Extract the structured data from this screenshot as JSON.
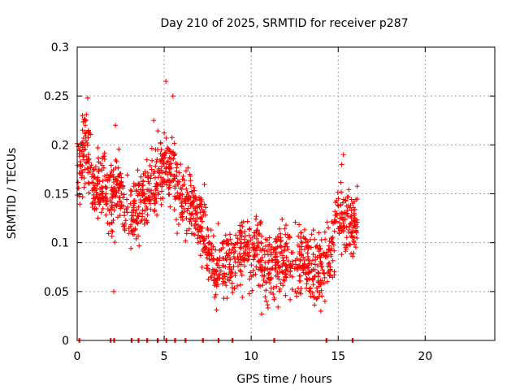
{
  "chart_data": {
    "type": "scatter",
    "title": "Day 210 of 2025, SRMTID for receiver p287",
    "xlabel": "GPS time / hours",
    "ylabel": "SRMTID / TECUs",
    "xlim": [
      0,
      24
    ],
    "ylim": [
      0,
      0.3
    ],
    "x_ticks": [
      0,
      5,
      10,
      15,
      20
    ],
    "x_tick_labels": [
      "0",
      "5",
      "10",
      "15",
      "20"
    ],
    "y_ticks": [
      0,
      0.05,
      0.1,
      0.15,
      0.2,
      0.25,
      0.3
    ],
    "y_tick_labels": [
      "0",
      "0.05",
      "0.1",
      "0.15",
      "0.2",
      "0.25",
      "0.3"
    ],
    "grid": true,
    "marker": "+",
    "series": [
      {
        "name": "SRMTID",
        "color": "#ff0000",
        "profile": [
          {
            "x": 0.0,
            "y": 0.17
          },
          {
            "x": 0.5,
            "y": 0.2
          },
          {
            "x": 1.0,
            "y": 0.15
          },
          {
            "x": 1.5,
            "y": 0.16
          },
          {
            "x": 2.0,
            "y": 0.14
          },
          {
            "x": 2.5,
            "y": 0.16
          },
          {
            "x": 3.0,
            "y": 0.12
          },
          {
            "x": 3.5,
            "y": 0.14
          },
          {
            "x": 4.0,
            "y": 0.15
          },
          {
            "x": 4.5,
            "y": 0.16
          },
          {
            "x": 5.0,
            "y": 0.18
          },
          {
            "x": 5.5,
            "y": 0.17
          },
          {
            "x": 6.0,
            "y": 0.15
          },
          {
            "x": 6.5,
            "y": 0.14
          },
          {
            "x": 7.0,
            "y": 0.13
          },
          {
            "x": 7.5,
            "y": 0.1
          },
          {
            "x": 8.0,
            "y": 0.07
          },
          {
            "x": 8.5,
            "y": 0.08
          },
          {
            "x": 9.0,
            "y": 0.085
          },
          {
            "x": 9.5,
            "y": 0.09
          },
          {
            "x": 10.0,
            "y": 0.09
          },
          {
            "x": 10.5,
            "y": 0.085
          },
          {
            "x": 11.0,
            "y": 0.075
          },
          {
            "x": 11.5,
            "y": 0.08
          },
          {
            "x": 12.0,
            "y": 0.085
          },
          {
            "x": 12.5,
            "y": 0.08
          },
          {
            "x": 13.0,
            "y": 0.08
          },
          {
            "x": 13.5,
            "y": 0.075
          },
          {
            "x": 14.0,
            "y": 0.07
          },
          {
            "x": 14.5,
            "y": 0.09
          },
          {
            "x": 15.0,
            "y": 0.13
          },
          {
            "x": 15.5,
            "y": 0.12
          },
          {
            "x": 16.0,
            "y": 0.12
          }
        ],
        "x_range": [
          0,
          16.1
        ],
        "spread": 0.035,
        "point_count": 1500,
        "notable_points": [
          {
            "x": 0.6,
            "y": 0.248
          },
          {
            "x": 5.1,
            "y": 0.265
          },
          {
            "x": 5.5,
            "y": 0.25
          },
          {
            "x": 0.3,
            "y": 0.23
          },
          {
            "x": 2.2,
            "y": 0.22
          },
          {
            "x": 4.4,
            "y": 0.225
          },
          {
            "x": 15.3,
            "y": 0.19
          },
          {
            "x": 15.2,
            "y": 0.18
          },
          {
            "x": 2.1,
            "y": 0.05
          },
          {
            "x": 10.6,
            "y": 0.027
          },
          {
            "x": 14.0,
            "y": 0.03
          },
          {
            "x": 13.9,
            "y": 0.045
          }
        ],
        "zero_points_x": [
          0.1,
          1.9,
          2.1,
          3.1,
          3.5,
          4.0,
          4.6,
          5.1,
          5.6,
          6.2,
          7.2,
          8.1,
          8.9,
          11.3,
          14.3,
          15.8
        ]
      }
    ]
  }
}
